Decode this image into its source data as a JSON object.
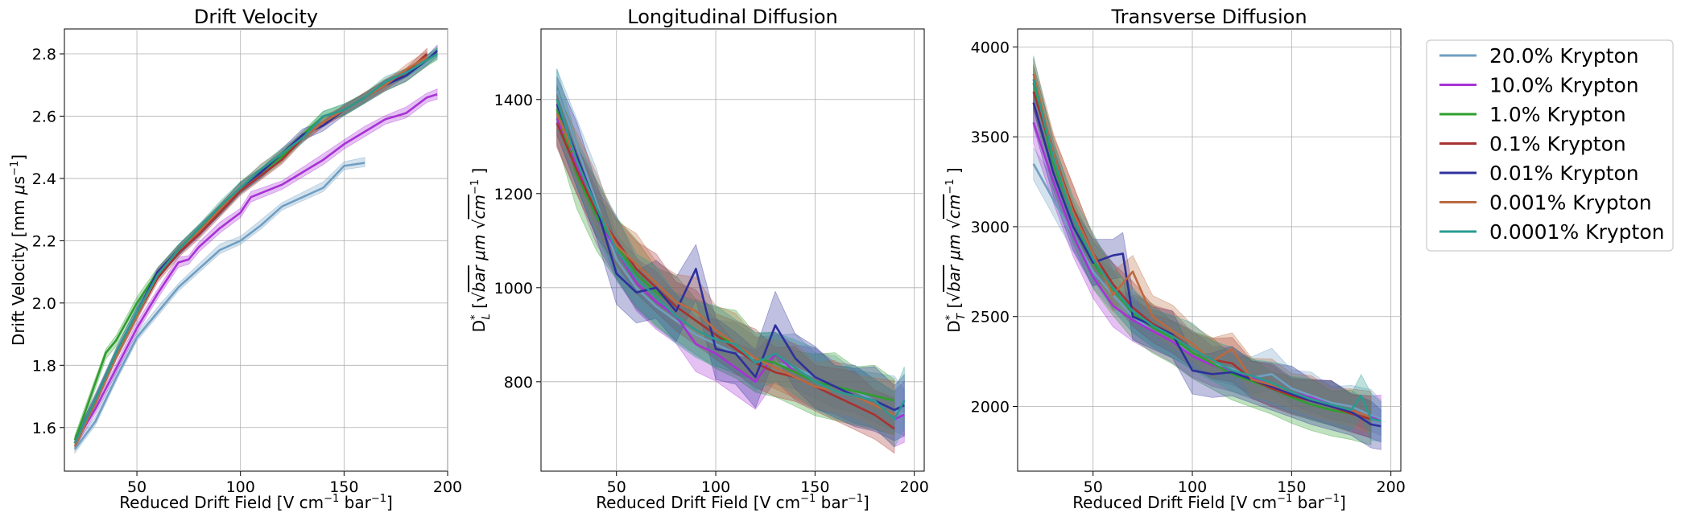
{
  "legend": {
    "placement": "right",
    "entries": [
      {
        "label": "20.0% Krypton",
        "color": "#6f9fc2"
      },
      {
        "label": "10.0% Krypton",
        "color": "#a832d6"
      },
      {
        "label": "1.0% Krypton",
        "color": "#2e9e2e"
      },
      {
        "label": "0.1% Krypton",
        "color": "#a83232"
      },
      {
        "label": "0.01% Krypton",
        "color": "#2e309c"
      },
      {
        "label": "0.001% Krypton",
        "color": "#bb6a40"
      },
      {
        "label": "0.0001% Krypton",
        "color": "#2a9a90"
      }
    ]
  },
  "chart_data": [
    {
      "type": "line",
      "title": "Drift Velocity",
      "xlabel": "Reduced Drift Field [V cm⁻¹ bar⁻¹]",
      "ylabel": "Drift Velocity [mm μs⁻¹]",
      "xlim": [
        15,
        200
      ],
      "ylim": [
        1.46,
        2.88
      ],
      "xticks": [
        50,
        100,
        150,
        200
      ],
      "yticks": [
        1.6,
        1.8,
        2.0,
        2.2,
        2.4,
        2.6,
        2.8
      ],
      "grid": true,
      "band_halfwidth": 0.012,
      "series": [
        {
          "name": "20.0% Krypton",
          "x": [
            20,
            30,
            40,
            50,
            60,
            70,
            80,
            90,
            100,
            110,
            120,
            130,
            140,
            150,
            160
          ],
          "y": [
            1.53,
            1.62,
            1.76,
            1.89,
            1.97,
            2.05,
            2.11,
            2.17,
            2.2,
            2.25,
            2.31,
            2.34,
            2.37,
            2.44,
            2.45
          ]
        },
        {
          "name": "10.0% Krypton",
          "x": [
            20,
            30,
            40,
            50,
            60,
            70,
            75,
            80,
            90,
            100,
            105,
            120,
            130,
            140,
            150,
            160,
            170,
            175,
            180,
            190,
            195
          ],
          "y": [
            1.55,
            1.66,
            1.79,
            1.92,
            2.03,
            2.13,
            2.14,
            2.18,
            2.24,
            2.29,
            2.34,
            2.38,
            2.42,
            2.46,
            2.51,
            2.55,
            2.59,
            2.6,
            2.61,
            2.66,
            2.67
          ]
        },
        {
          "name": "1.0% Krypton",
          "x": [
            20,
            25,
            35,
            40,
            50,
            60,
            70,
            80,
            90,
            100,
            110,
            120,
            130,
            140,
            150,
            160,
            170,
            180,
            190,
            195
          ],
          "y": [
            1.56,
            1.65,
            1.84,
            1.88,
            2.0,
            2.1,
            2.17,
            2.24,
            2.3,
            2.37,
            2.42,
            2.47,
            2.54,
            2.6,
            2.62,
            2.66,
            2.7,
            2.73,
            2.78,
            2.8
          ]
        },
        {
          "name": "0.1% Krypton",
          "x": [
            20,
            30,
            40,
            50,
            60,
            70,
            80,
            90,
            100,
            110,
            120,
            130,
            140,
            150,
            160,
            170,
            180,
            190
          ],
          "y": [
            1.55,
            1.69,
            1.83,
            1.96,
            2.08,
            2.16,
            2.22,
            2.29,
            2.36,
            2.41,
            2.46,
            2.53,
            2.58,
            2.62,
            2.66,
            2.7,
            2.74,
            2.8
          ]
        },
        {
          "name": "0.01% Krypton",
          "x": [
            20,
            30,
            40,
            50,
            60,
            70,
            80,
            90,
            100,
            110,
            120,
            130,
            140,
            150,
            160,
            170,
            180,
            190,
            195
          ],
          "y": [
            1.55,
            1.69,
            1.84,
            1.97,
            2.1,
            2.17,
            2.23,
            2.3,
            2.37,
            2.42,
            2.48,
            2.54,
            2.57,
            2.62,
            2.66,
            2.7,
            2.73,
            2.78,
            2.81
          ]
        },
        {
          "name": "0.001% Krypton",
          "x": [
            20,
            30,
            40,
            50,
            60,
            70,
            80,
            90,
            100,
            110,
            120,
            130,
            140,
            150,
            160,
            170,
            180,
            190
          ],
          "y": [
            1.54,
            1.68,
            1.83,
            1.96,
            2.09,
            2.17,
            2.23,
            2.3,
            2.37,
            2.43,
            2.48,
            2.53,
            2.58,
            2.62,
            2.66,
            2.7,
            2.75,
            2.79
          ]
        },
        {
          "name": "0.0001% Krypton",
          "x": [
            20,
            30,
            40,
            50,
            60,
            70,
            80,
            90,
            100,
            110,
            120,
            130,
            140,
            150,
            160,
            170,
            180,
            190,
            195
          ],
          "y": [
            1.55,
            1.69,
            1.84,
            1.97,
            2.09,
            2.17,
            2.24,
            2.31,
            2.37,
            2.43,
            2.48,
            2.53,
            2.6,
            2.62,
            2.66,
            2.71,
            2.74,
            2.78,
            2.8
          ]
        }
      ]
    },
    {
      "type": "line",
      "title": "Longitudinal Diffusion",
      "xlabel": "Reduced Drift Field [V cm⁻¹ bar⁻¹]",
      "ylabel": "D*_L [√bar μm √cm⁻¹]",
      "xlim": [
        12,
        205
      ],
      "ylim": [
        610,
        1550
      ],
      "xticks": [
        50,
        100,
        150,
        200
      ],
      "yticks": [
        800,
        1000,
        1200,
        1400
      ],
      "grid": true,
      "band_halfwidth": 45,
      "series": [
        {
          "name": "20.0% Krypton",
          "x": [
            20,
            30,
            40,
            50,
            60,
            70,
            80,
            90,
            100,
            110,
            120,
            130,
            140,
            150,
            160,
            170,
            180,
            190,
            195
          ],
          "y": [
            1420,
            1300,
            1180,
            1060,
            1000,
            960,
            930,
            900,
            880,
            860,
            850,
            840,
            830,
            810,
            790,
            780,
            760,
            740,
            730
          ]
        },
        {
          "name": "10.0% Krypton",
          "x": [
            20,
            30,
            40,
            50,
            60,
            70,
            80,
            90,
            100,
            110,
            120,
            130,
            140,
            150,
            160,
            170,
            180,
            190,
            195
          ],
          "y": [
            1360,
            1260,
            1150,
            1080,
            1010,
            970,
            940,
            880,
            860,
            830,
            800,
            860,
            820,
            800,
            790,
            770,
            760,
            720,
            730
          ]
        },
        {
          "name": "1.0% Krypton",
          "x": [
            20,
            30,
            40,
            50,
            60,
            70,
            80,
            90,
            100,
            110,
            120,
            130,
            140,
            150,
            160,
            170,
            180,
            190
          ],
          "y": [
            1380,
            1240,
            1150,
            1090,
            1030,
            990,
            960,
            930,
            900,
            880,
            850,
            840,
            820,
            800,
            790,
            780,
            770,
            760
          ]
        },
        {
          "name": "0.1% Krypton",
          "x": [
            20,
            30,
            40,
            50,
            60,
            70,
            80,
            90,
            100,
            110,
            120,
            130,
            140,
            150,
            160,
            170,
            180,
            190
          ],
          "y": [
            1350,
            1250,
            1160,
            1100,
            1040,
            1000,
            960,
            930,
            900,
            870,
            840,
            820,
            810,
            790,
            770,
            750,
            730,
            700
          ]
        },
        {
          "name": "0.01% Krypton",
          "x": [
            20,
            30,
            40,
            50,
            60,
            70,
            80,
            90,
            100,
            110,
            120,
            130,
            140,
            150,
            160,
            170,
            180,
            190,
            195
          ],
          "y": [
            1390,
            1280,
            1170,
            1030,
            990,
            1000,
            950,
            1040,
            870,
            860,
            810,
            920,
            850,
            810,
            790,
            770,
            760,
            740,
            750
          ]
        },
        {
          "name": "0.001% Krypton",
          "x": [
            20,
            30,
            40,
            50,
            60,
            70,
            80,
            90,
            100,
            110,
            120,
            130,
            140,
            150,
            160,
            170,
            180,
            190
          ],
          "y": [
            1370,
            1270,
            1170,
            1090,
            1050,
            1010,
            970,
            950,
            910,
            880,
            850,
            830,
            810,
            790,
            780,
            770,
            750,
            730
          ]
        },
        {
          "name": "0.0001% Krypton",
          "x": [
            20,
            30,
            40,
            50,
            60,
            70,
            80,
            90,
            100,
            110,
            120,
            130,
            140,
            150,
            160,
            170,
            180,
            190,
            195
          ],
          "y": [
            1400,
            1270,
            1170,
            1080,
            1020,
            980,
            940,
            910,
            890,
            880,
            840,
            860,
            830,
            800,
            780,
            770,
            760,
            720,
            760
          ]
        }
      ]
    },
    {
      "type": "line",
      "title": "Transverse Diffusion",
      "xlabel": "Reduced Drift Field [V cm⁻¹ bar⁻¹]",
      "ylabel": "D*_T [√bar μm √cm⁻¹]",
      "xlim": [
        12,
        205
      ],
      "ylim": [
        1640,
        4100
      ],
      "xticks": [
        50,
        100,
        150,
        200
      ],
      "yticks": [
        2000,
        2500,
        3000,
        3500,
        4000
      ],
      "grid": true,
      "band_halfwidth": 90,
      "series": [
        {
          "name": "20.0% Krypton",
          "x": [
            20,
            30,
            40,
            50,
            60,
            70,
            80,
            90,
            100,
            110,
            120,
            130,
            140,
            150,
            160,
            170,
            180,
            190,
            195
          ],
          "y": [
            3350,
            3150,
            2950,
            2750,
            2620,
            2500,
            2420,
            2360,
            2300,
            2240,
            2210,
            2160,
            2180,
            2100,
            2060,
            2020,
            2000,
            1950,
            1930
          ]
        },
        {
          "name": "10.0% Krypton",
          "x": [
            20,
            30,
            40,
            50,
            60,
            70,
            80,
            90,
            100,
            110,
            120,
            130,
            140,
            150,
            160,
            170,
            180,
            190,
            195
          ],
          "y": [
            3580,
            3250,
            2950,
            2720,
            2560,
            2480,
            2420,
            2360,
            2280,
            2230,
            2200,
            2160,
            2120,
            2080,
            2050,
            2010,
            1980,
            1940,
            1920
          ]
        },
        {
          "name": "1.0% Krypton",
          "x": [
            20,
            30,
            40,
            50,
            60,
            70,
            80,
            90,
            100,
            110,
            120,
            130,
            140,
            150,
            160,
            170,
            180,
            190
          ],
          "y": [
            3800,
            3350,
            3050,
            2800,
            2650,
            2520,
            2440,
            2380,
            2300,
            2240,
            2180,
            2140,
            2100,
            2050,
            2010,
            1980,
            1960,
            1930
          ]
        },
        {
          "name": "0.1% Krypton",
          "x": [
            20,
            30,
            40,
            50,
            60,
            70,
            80,
            90,
            100,
            110,
            120,
            130,
            140,
            150,
            160,
            170,
            180,
            190
          ],
          "y": [
            3750,
            3400,
            3100,
            2850,
            2680,
            2550,
            2460,
            2400,
            2320,
            2260,
            2240,
            2150,
            2100,
            2060,
            2030,
            2000,
            1960,
            1930
          ]
        },
        {
          "name": "0.01% Krypton",
          "x": [
            20,
            30,
            40,
            50,
            60,
            65,
            70,
            80,
            90,
            100,
            110,
            120,
            130,
            140,
            150,
            160,
            170,
            180,
            190,
            195
          ],
          "y": [
            3690,
            3300,
            3000,
            2800,
            2840,
            2850,
            2500,
            2450,
            2400,
            2200,
            2180,
            2190,
            2150,
            2110,
            2070,
            2030,
            2000,
            1970,
            1900,
            1890
          ]
        },
        {
          "name": "0.001% Krypton",
          "x": [
            20,
            30,
            40,
            50,
            60,
            70,
            80,
            90,
            100,
            110,
            120,
            130,
            140,
            150,
            160,
            170,
            180,
            190
          ],
          "y": [
            3850,
            3400,
            3080,
            2850,
            2620,
            2750,
            2500,
            2420,
            2350,
            2250,
            2320,
            2150,
            2120,
            2080,
            2040,
            2010,
            1980,
            1940
          ]
        },
        {
          "name": "0.0001% Krypton",
          "x": [
            20,
            30,
            40,
            50,
            60,
            70,
            80,
            90,
            100,
            110,
            120,
            130,
            140,
            150,
            160,
            170,
            180,
            185,
            190,
            195
          ],
          "y": [
            3820,
            3380,
            3050,
            2820,
            2660,
            2530,
            2450,
            2390,
            2320,
            2260,
            2200,
            2170,
            2130,
            2080,
            2040,
            2010,
            1980,
            2060,
            1930,
            1920
          ]
        }
      ]
    }
  ]
}
